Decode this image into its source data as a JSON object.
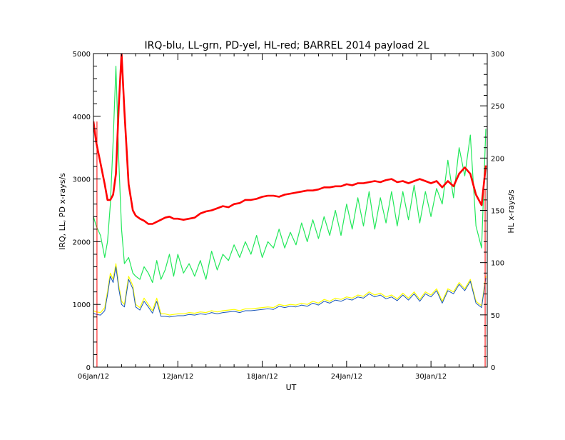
{
  "chart_data": {
    "type": "line",
    "title": "IRQ-blu, LL-grn, PD-yel, HL-red; BARREL 2014 payload 2L",
    "xlabel": "UT",
    "ylabel_left": "IRQ, LL, PD x-rays/s",
    "ylabel_right": "HL x-rays/s",
    "x_tick_labels": [
      "06Jan/12",
      "12Jan/12",
      "18Jan/12",
      "24Jan/12",
      "30Jan/12"
    ],
    "x_tick_days": [
      6,
      12,
      18,
      24,
      30
    ],
    "xlim_days": [
      6,
      34
    ],
    "ylim_left": [
      0,
      5000
    ],
    "ylim_right": [
      0,
      300
    ],
    "y_left_ticks": [
      0,
      1000,
      2000,
      3000,
      4000,
      5000
    ],
    "y_right_ticks": [
      0,
      50,
      100,
      150,
      200,
      250,
      300
    ],
    "grid": false,
    "colors": {
      "IRQ": "#1a56b8",
      "LL": "#22e85a",
      "PD": "#ffff00",
      "HL": "#ff0000",
      "axis": "#000000"
    },
    "series": [
      {
        "key": "LL",
        "axis": "left",
        "x": [
          6.0,
          6.2,
          6.5,
          6.8,
          7.0,
          7.2,
          7.4,
          7.6,
          7.8,
          8.0,
          8.2,
          8.5,
          8.8,
          9.0,
          9.3,
          9.6,
          9.9,
          10.2,
          10.5,
          10.8,
          11.1,
          11.4,
          11.7,
          12.0,
          12.4,
          12.8,
          13.2,
          13.6,
          14.0,
          14.4,
          14.8,
          15.2,
          15.6,
          16.0,
          16.4,
          16.8,
          17.2,
          17.6,
          18.0,
          18.4,
          18.8,
          19.2,
          19.6,
          20.0,
          20.4,
          20.8,
          21.2,
          21.6,
          22.0,
          22.4,
          22.8,
          23.2,
          23.6,
          24.0,
          24.4,
          24.8,
          25.2,
          25.6,
          26.0,
          26.4,
          26.8,
          27.2,
          27.6,
          28.0,
          28.4,
          28.8,
          29.2,
          29.6,
          30.0,
          30.4,
          30.8,
          31.2,
          31.6,
          32.0,
          32.4,
          32.8,
          33.2,
          33.6,
          33.9
        ],
        "values": [
          2400,
          2250,
          2100,
          1750,
          2000,
          2600,
          3600,
          4800,
          3300,
          2200,
          1650,
          1750,
          1500,
          1450,
          1400,
          1600,
          1500,
          1350,
          1700,
          1400,
          1550,
          1800,
          1450,
          1800,
          1500,
          1650,
          1450,
          1700,
          1400,
          1850,
          1550,
          1800,
          1700,
          1950,
          1750,
          2000,
          1800,
          2100,
          1750,
          2000,
          1900,
          2200,
          1900,
          2150,
          1950,
          2300,
          2000,
          2350,
          2050,
          2400,
          2100,
          2500,
          2100,
          2600,
          2200,
          2700,
          2250,
          2800,
          2200,
          2700,
          2300,
          2800,
          2250,
          2800,
          2350,
          2900,
          2300,
          2800,
          2400,
          2850,
          2600,
          3300,
          2700,
          3500,
          3050,
          3700,
          2250,
          1900,
          3800
        ]
      },
      {
        "key": "PD",
        "axis": "left",
        "x": [
          6.0,
          6.2,
          6.5,
          6.8,
          7.0,
          7.2,
          7.4,
          7.6,
          7.8,
          8.0,
          8.2,
          8.5,
          8.8,
          9.0,
          9.3,
          9.6,
          9.9,
          10.2,
          10.5,
          10.8,
          11.1,
          11.4,
          11.7,
          12.0,
          12.4,
          12.8,
          13.2,
          13.6,
          14.0,
          14.4,
          14.8,
          15.2,
          15.6,
          16.0,
          16.4,
          16.8,
          17.2,
          17.6,
          18.0,
          18.4,
          18.8,
          19.2,
          19.6,
          20.0,
          20.4,
          20.8,
          21.2,
          21.6,
          22.0,
          22.4,
          22.8,
          23.2,
          23.6,
          24.0,
          24.4,
          24.8,
          25.2,
          25.6,
          26.0,
          26.4,
          26.8,
          27.2,
          27.6,
          28.0,
          28.4,
          28.8,
          29.2,
          29.6,
          30.0,
          30.4,
          30.8,
          31.2,
          31.6,
          32.0,
          32.4,
          32.8,
          33.2,
          33.6,
          33.9
        ],
        "values": [
          900,
          880,
          870,
          950,
          1200,
          1500,
          1400,
          1650,
          1300,
          1050,
          1000,
          1450,
          1300,
          1000,
          950,
          1100,
          1000,
          900,
          1100,
          850,
          850,
          830,
          840,
          850,
          850,
          870,
          860,
          880,
          870,
          900,
          880,
          900,
          910,
          920,
          900,
          930,
          930,
          940,
          950,
          960,
          950,
          1000,
          980,
          1000,
          990,
          1020,
          1000,
          1050,
          1020,
          1080,
          1050,
          1100,
          1080,
          1120,
          1100,
          1150,
          1130,
          1200,
          1150,
          1180,
          1120,
          1150,
          1090,
          1180,
          1100,
          1200,
          1080,
          1200,
          1150,
          1250,
          1050,
          1250,
          1200,
          1350,
          1250,
          1400,
          1050,
          980,
          1450
        ]
      },
      {
        "key": "IRQ",
        "axis": "left",
        "x": [
          6.0,
          6.2,
          6.5,
          6.8,
          7.0,
          7.2,
          7.4,
          7.6,
          7.8,
          8.0,
          8.2,
          8.5,
          8.8,
          9.0,
          9.3,
          9.6,
          9.9,
          10.2,
          10.5,
          10.8,
          11.1,
          11.4,
          11.7,
          12.0,
          12.4,
          12.8,
          13.2,
          13.6,
          14.0,
          14.4,
          14.8,
          15.2,
          15.6,
          16.0,
          16.4,
          16.8,
          17.2,
          17.6,
          18.0,
          18.4,
          18.8,
          19.2,
          19.6,
          20.0,
          20.4,
          20.8,
          21.2,
          21.6,
          22.0,
          22.4,
          22.8,
          23.2,
          23.6,
          24.0,
          24.4,
          24.8,
          25.2,
          25.6,
          26.0,
          26.4,
          26.8,
          27.2,
          27.6,
          28.0,
          28.4,
          28.8,
          29.2,
          29.6,
          30.0,
          30.4,
          30.8,
          31.2,
          31.6,
          32.0,
          32.4,
          32.8,
          33.2,
          33.6,
          33.9
        ],
        "values": [
          860,
          840,
          830,
          900,
          1150,
          1450,
          1350,
          1600,
          1250,
          1000,
          960,
          1400,
          1250,
          960,
          910,
          1050,
          960,
          860,
          1050,
          810,
          810,
          800,
          810,
          820,
          820,
          840,
          830,
          850,
          840,
          870,
          850,
          870,
          880,
          890,
          870,
          900,
          900,
          910,
          920,
          930,
          920,
          970,
          950,
          970,
          960,
          990,
          970,
          1020,
          990,
          1050,
          1020,
          1070,
          1050,
          1090,
          1070,
          1120,
          1100,
          1170,
          1120,
          1150,
          1090,
          1120,
          1060,
          1150,
          1070,
          1170,
          1050,
          1170,
          1120,
          1220,
          1020,
          1220,
          1170,
          1320,
          1220,
          1370,
          1020,
          950,
          1420
        ]
      },
      {
        "key": "HL",
        "axis": "right",
        "x": [
          6.0,
          6.2,
          6.5,
          6.8,
          7.0,
          7.2,
          7.4,
          7.6,
          7.8,
          8.0,
          8.2,
          8.5,
          8.8,
          9.0,
          9.3,
          9.6,
          9.9,
          10.2,
          10.5,
          10.8,
          11.1,
          11.4,
          11.7,
          12.0,
          12.4,
          12.8,
          13.2,
          13.6,
          14.0,
          14.4,
          14.8,
          15.2,
          15.6,
          16.0,
          16.4,
          16.8,
          17.2,
          17.6,
          18.0,
          18.4,
          18.8,
          19.2,
          19.6,
          20.0,
          20.4,
          20.8,
          21.2,
          21.6,
          22.0,
          22.4,
          22.8,
          23.2,
          23.6,
          24.0,
          24.4,
          24.8,
          25.2,
          25.6,
          26.0,
          26.4,
          26.8,
          27.2,
          27.6,
          28.0,
          28.4,
          28.8,
          29.2,
          29.6,
          30.0,
          30.4,
          30.8,
          31.2,
          31.6,
          32.0,
          32.4,
          32.8,
          33.2,
          33.6,
          33.9
        ],
        "values": [
          235,
          215,
          195,
          175,
          160,
          160,
          165,
          185,
          250,
          300,
          245,
          175,
          150,
          145,
          142,
          140,
          137,
          137,
          139,
          141,
          143,
          144,
          142,
          142,
          141,
          142,
          143,
          147,
          149,
          150,
          152,
          154,
          153,
          156,
          157,
          160,
          160,
          161,
          163,
          164,
          164,
          163,
          165,
          166,
          167,
          168,
          169,
          169,
          170,
          172,
          172,
          173,
          173,
          175,
          174,
          176,
          176,
          177,
          178,
          177,
          179,
          180,
          177,
          178,
          176,
          178,
          180,
          178,
          176,
          178,
          172,
          178,
          173,
          185,
          191,
          185,
          165,
          155,
          193
        ]
      }
    ]
  }
}
